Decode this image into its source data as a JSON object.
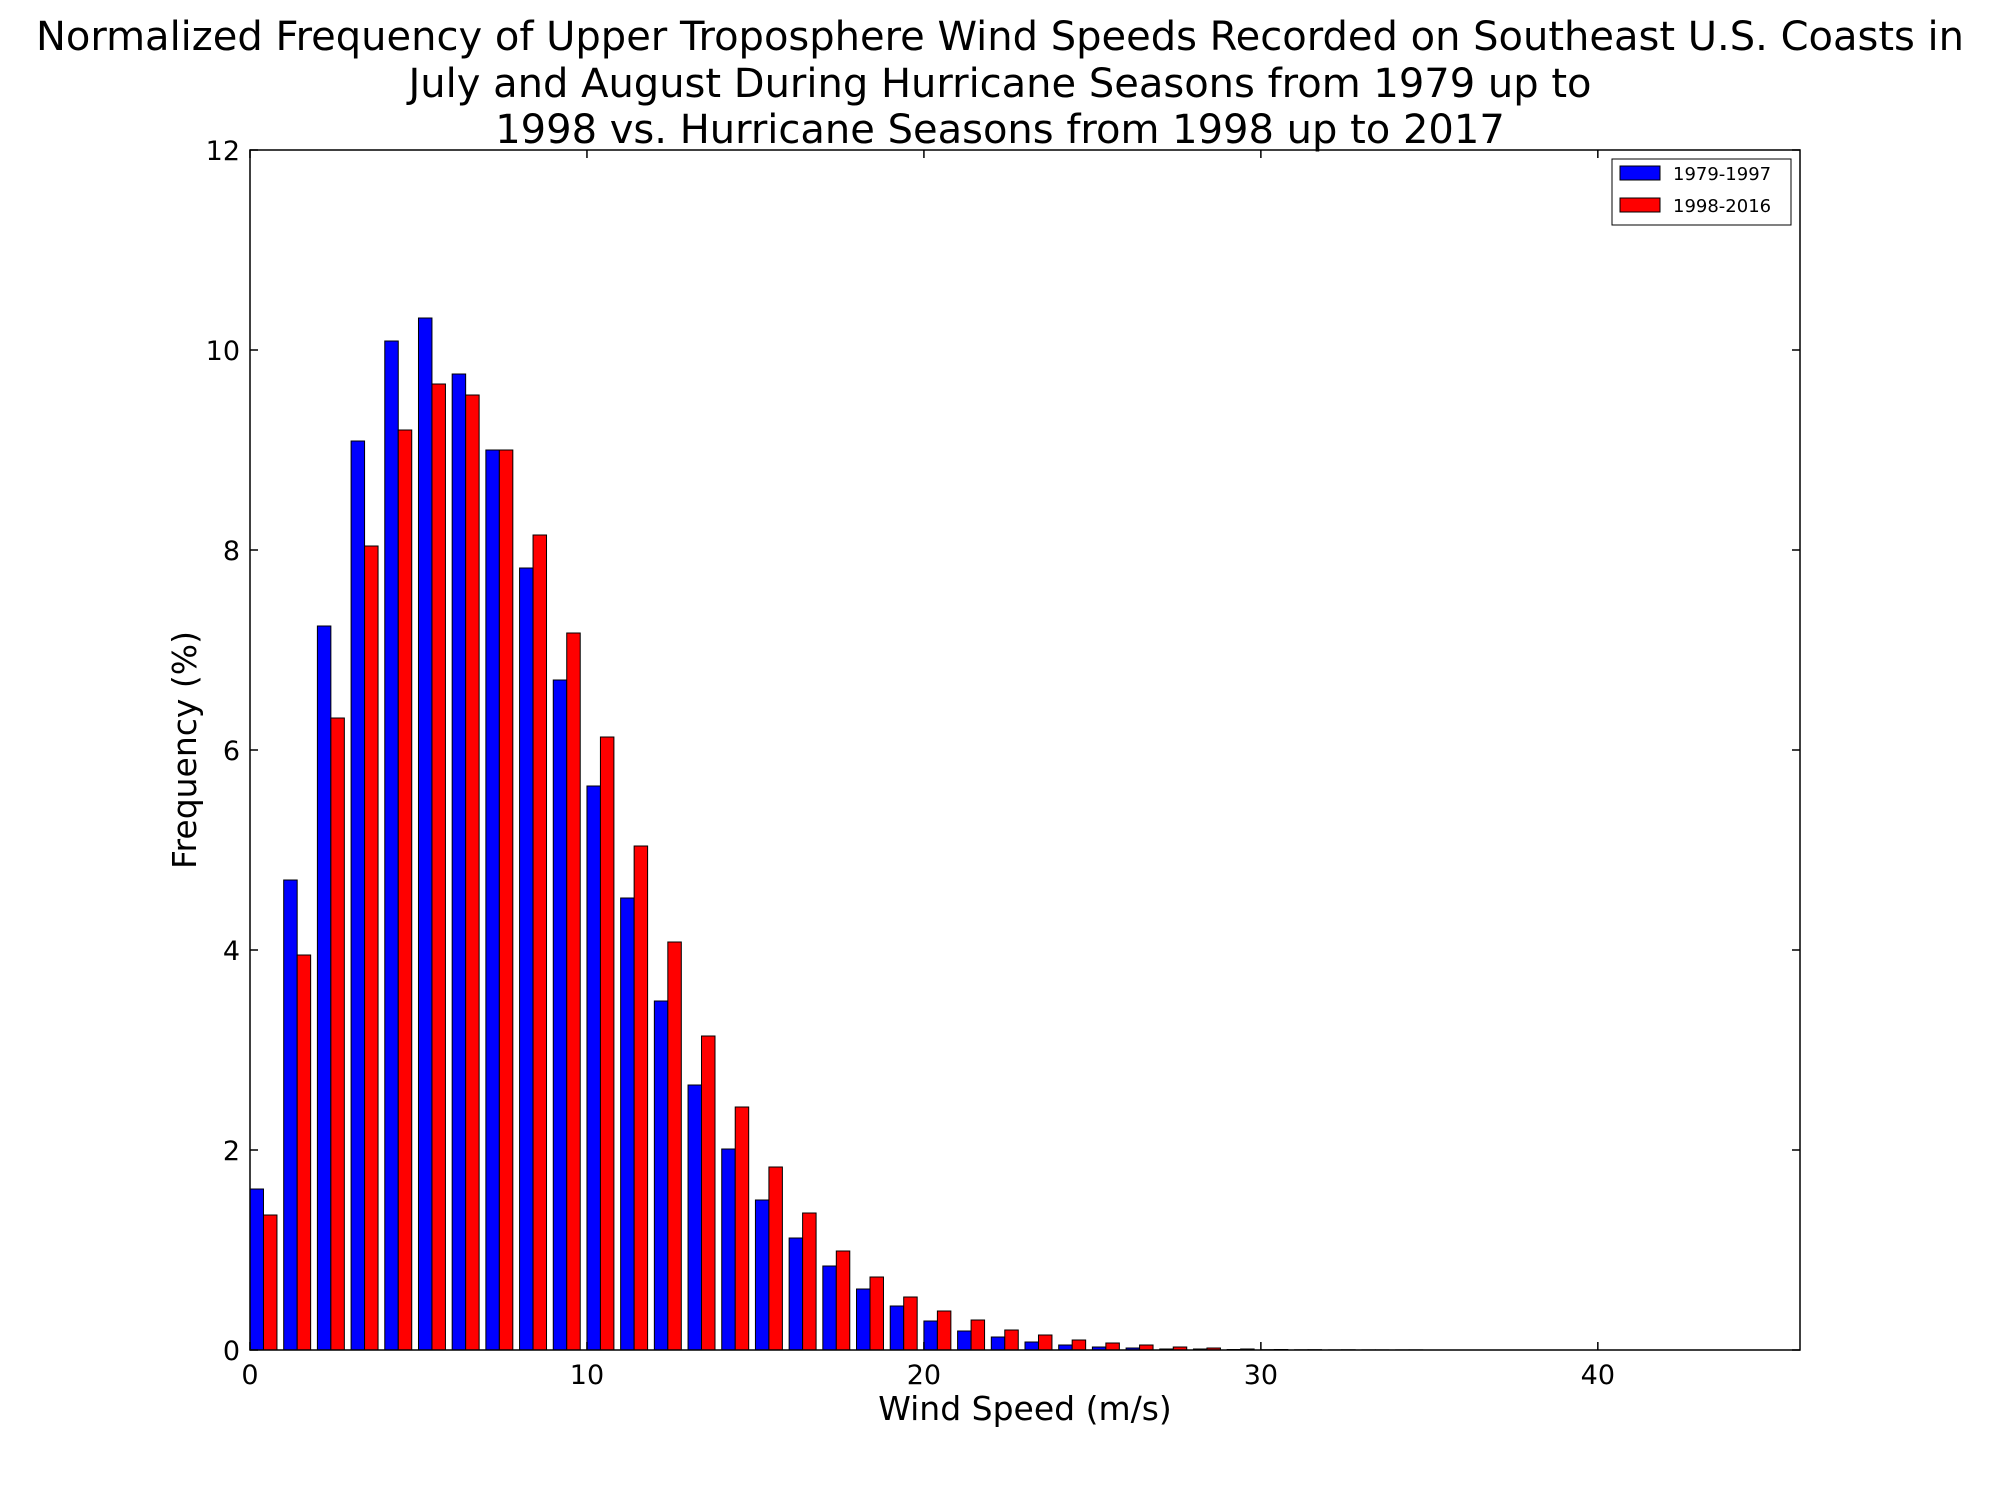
{
  "chart_data": {
    "type": "bar",
    "title_lines": [
      "Normalized Frequency of Upper Troposphere Wind Speeds Recorded on Southeast U.S. Coasts in",
      "July and August During Hurricane Seasons from 1979 up to",
      "1998 vs. Hurricane Seasons from 1998 up to 2017"
    ],
    "xlabel": "Wind Speed (m/s)",
    "ylabel": "Frequency (%)",
    "xlim": [
      0,
      46
    ],
    "ylim": [
      0,
      12
    ],
    "xticks": [
      0,
      10,
      20,
      30,
      40
    ],
    "yticks": [
      0,
      2,
      4,
      6,
      8,
      10,
      12
    ],
    "grid": false,
    "legend_position": "top-right",
    "bin_width": 1,
    "bin_starts": [
      0,
      1,
      2,
      3,
      4,
      5,
      6,
      7,
      8,
      9,
      10,
      11,
      12,
      13,
      14,
      15,
      16,
      17,
      18,
      19,
      20,
      21,
      22,
      23,
      24,
      25,
      26,
      27,
      28,
      29,
      30,
      31,
      32,
      33,
      34,
      35,
      36,
      37,
      38,
      39,
      40,
      41,
      42,
      43,
      44
    ],
    "series": [
      {
        "name": "1979-1997",
        "color": "#0000ff",
        "values": [
          1.61,
          4.7,
          7.24,
          9.09,
          10.09,
          10.32,
          9.76,
          9.0,
          7.82,
          6.7,
          5.64,
          4.52,
          3.49,
          2.65,
          2.01,
          1.5,
          1.12,
          0.84,
          0.61,
          0.44,
          0.29,
          0.19,
          0.13,
          0.08,
          0.05,
          0.03,
          0.02,
          0.01,
          0.01,
          0.005,
          0.003,
          0.002,
          0.001,
          0.001,
          0.001,
          0.0,
          0.0,
          0.0,
          0.0,
          0.0,
          0.0,
          0.0,
          0.0,
          0.0,
          0.0
        ]
      },
      {
        "name": "1998-2016",
        "color": "#ff0000",
        "values": [
          1.35,
          3.95,
          6.32,
          8.04,
          9.2,
          9.66,
          9.55,
          9.0,
          8.15,
          7.17,
          6.13,
          5.04,
          4.08,
          3.14,
          2.43,
          1.83,
          1.37,
          0.99,
          0.73,
          0.53,
          0.39,
          0.3,
          0.2,
          0.15,
          0.1,
          0.07,
          0.05,
          0.03,
          0.02,
          0.01,
          0.005,
          0.003,
          0.002,
          0.001,
          0.001,
          0.0,
          0.0,
          0.0,
          0.0,
          0.0,
          0.0,
          0.0,
          0.0,
          0.0,
          0.0
        ]
      }
    ]
  }
}
